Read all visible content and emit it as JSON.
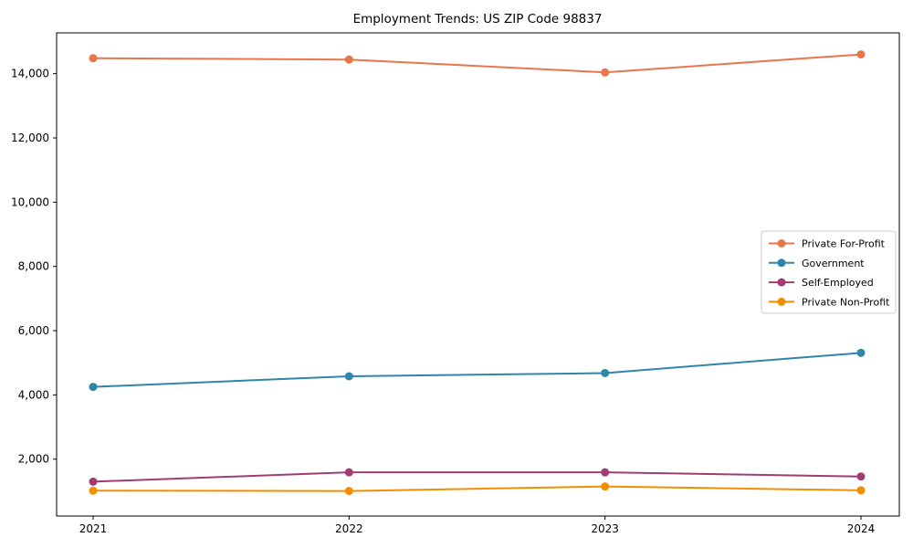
{
  "chart_data": {
    "type": "line",
    "title": "Employment Trends: US ZIP Code 98837",
    "xlabel": "",
    "ylabel": "",
    "categories": [
      "2021",
      "2022",
      "2023",
      "2024"
    ],
    "series": [
      {
        "name": "Private For-Profit",
        "color": "#e8764b",
        "values": [
          14480,
          14440,
          14040,
          14600
        ]
      },
      {
        "name": "Government",
        "color": "#2e86ab",
        "values": [
          4250,
          4580,
          4680,
          5310
        ]
      },
      {
        "name": "Self-Employed",
        "color": "#a23b72",
        "values": [
          1300,
          1590,
          1590,
          1460
        ]
      },
      {
        "name": "Private Non-Profit",
        "color": "#f18f01",
        "values": [
          1020,
          1010,
          1150,
          1030
        ]
      }
    ],
    "y_ticks": [
      {
        "value": 2000,
        "label": "2,000"
      },
      {
        "value": 4000,
        "label": "4,000"
      },
      {
        "value": 6000,
        "label": "6,000"
      },
      {
        "value": 8000,
        "label": "8,000"
      },
      {
        "value": 10000,
        "label": "10,000"
      },
      {
        "value": 12000,
        "label": "12,000"
      },
      {
        "value": 14000,
        "label": "14,000"
      }
    ],
    "ylim": [
      230,
      15270
    ],
    "grid": false,
    "marker": "circle",
    "legend_position": "center-right",
    "frame_color": "#000000",
    "legend_border_color": "#cccccc",
    "legend_background": "#ffffff"
  }
}
